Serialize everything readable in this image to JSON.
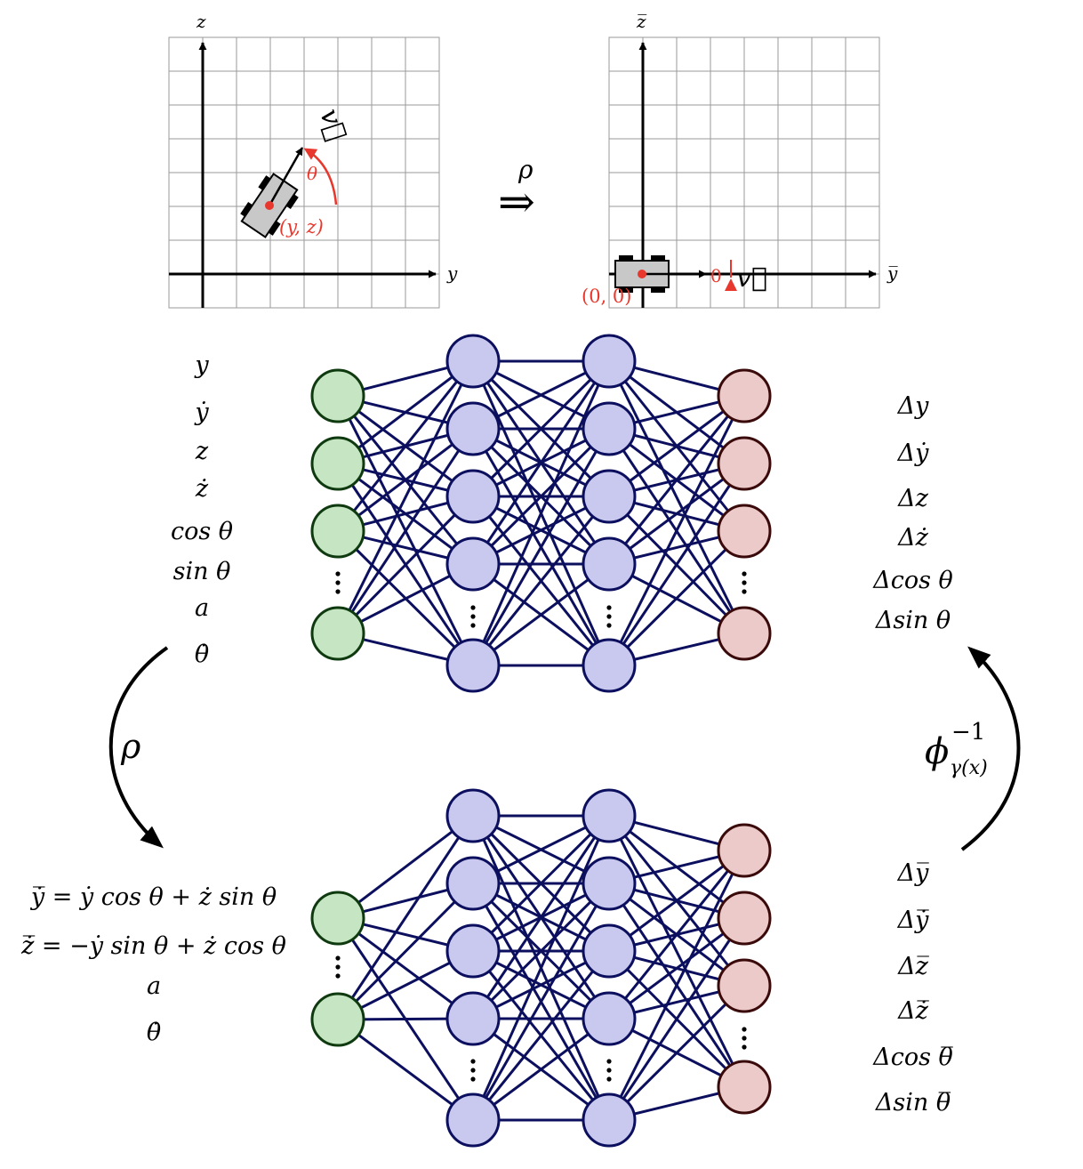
{
  "top_left_plot": {
    "axis_y_label": "y",
    "axis_z_label": "z",
    "vector_label": "v⃗",
    "angle_label": "θ",
    "position_label": "(y, z)"
  },
  "transform_arrow": {
    "rho_label": "ρ",
    "arrow_symbol": "⇒"
  },
  "top_right_plot": {
    "axis_y_label": "y̅",
    "axis_z_label": "z̅",
    "vector_label": "v⃗",
    "angle_label": "0",
    "position_label": "(0, 0)"
  },
  "net_top": {
    "inputs": [
      "y",
      "ẏ",
      "z",
      "ż",
      "cos θ",
      "sin θ",
      "a",
      "θ̇"
    ],
    "outputs": [
      "Δy",
      "Δẏ",
      "Δz",
      "Δż",
      "Δcos θ",
      "Δsin θ"
    ]
  },
  "net_bottom": {
    "inputs": [
      "y̅̇ = ẏ cos θ + ż sin θ",
      "z̅̇ = −ẏ sin θ + ż cos θ",
      "a",
      "θ̇"
    ],
    "outputs": [
      "Δy̅",
      "Δy̅̇",
      "Δz̅",
      "Δz̅̇",
      "Δcos θ̅",
      "Δsin θ̅"
    ]
  },
  "left_arrow": {
    "label": "ρ"
  },
  "right_arrow": {
    "label_main": "ϕ",
    "label_sup": "−1",
    "label_sub": "γ(x)"
  },
  "colors": {
    "grid": "#9a9a9a",
    "axis": "#000000",
    "red": "#e8382d",
    "car_body": "#c8c8c8",
    "edge": "#0b0f5e",
    "input_fill": "#c6e6c3",
    "input_stroke": "#0f3a10",
    "hidden_fill": "#c9c9f0",
    "hidden_stroke": "#0b0f5e",
    "output_fill": "#edcaca",
    "output_stroke": "#3a0a0a"
  }
}
